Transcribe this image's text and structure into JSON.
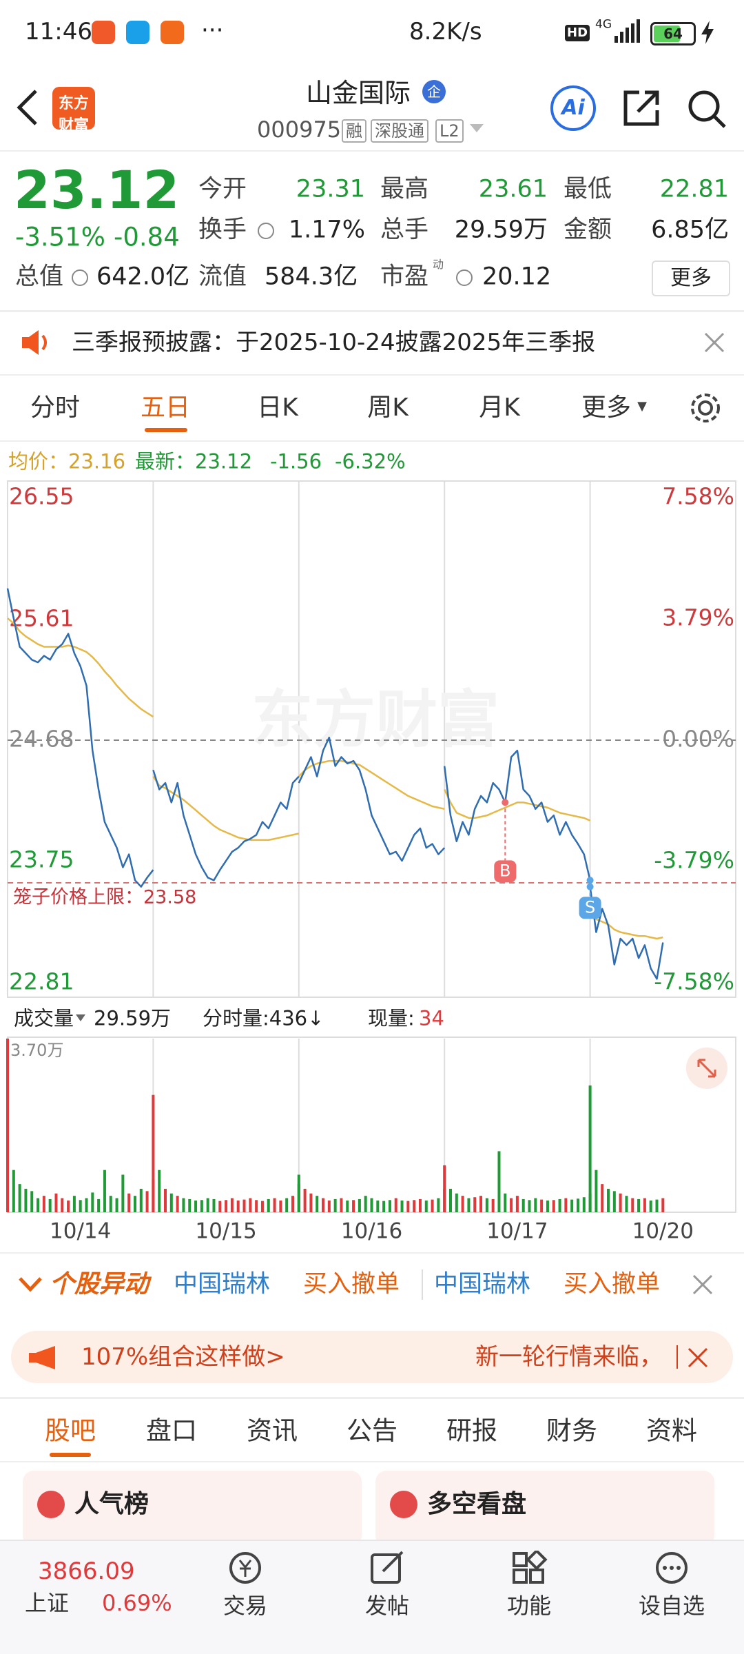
{
  "status_bar": {
    "time": "11:46",
    "speed": "8.2K/s",
    "hd": "HD",
    "network": "4G",
    "battery": "64"
  },
  "header": {
    "logo_top": "东方",
    "logo_bottom": "财富",
    "title": "山金国际",
    "badge": "企",
    "code": "000975",
    "tags": [
      "融",
      "深股通",
      "L2"
    ],
    "ai": "Ai"
  },
  "quote": {
    "price": "23.12",
    "change_pct": "-3.51%",
    "change": "-0.84",
    "fields": [
      {
        "label": "今开",
        "value": "23.31",
        "color": "green"
      },
      {
        "label": "最高",
        "value": "23.61",
        "color": "green"
      },
      {
        "label": "最低",
        "value": "22.81",
        "color": "green"
      },
      {
        "label": "换手",
        "value": "1.17%",
        "color": "dark"
      },
      {
        "label": "总手",
        "value": "29.59万",
        "color": "dark"
      },
      {
        "label": "金额",
        "value": "6.85亿",
        "color": "dark"
      },
      {
        "label": "总值",
        "value": "642.0亿",
        "color": "dark"
      },
      {
        "label": "流值",
        "value": "584.3亿",
        "color": "dark"
      },
      {
        "label": "市盈",
        "value": "20.12",
        "color": "dark"
      }
    ],
    "pe_note": "动",
    "more": "更多"
  },
  "notice": "三季报预披露：于2025-10-24披露2025年三季报",
  "tabs": [
    "分时",
    "五日",
    "日K",
    "周K",
    "月K",
    "更多"
  ],
  "info_line": {
    "avg_label": "均价：23.16",
    "last_label": "最新：23.12",
    "change": "-1.56",
    "change_pct": "-6.32%"
  },
  "chart_data": {
    "type": "line",
    "watermark": "东方财富",
    "categories": [
      "10/14",
      "10/15",
      "10/16",
      "10/17",
      "10/20"
    ],
    "price": [
      [
        25.85,
        25.62,
        25.4,
        25.35,
        25.3,
        25.28,
        25.33,
        25.3,
        25.38,
        25.42,
        25.5,
        25.35,
        25.25,
        25.1,
        24.6,
        24.3,
        24.05,
        23.95,
        23.85,
        23.7,
        23.8,
        23.6,
        23.55,
        23.62,
        23.68
      ],
      [
        24.45,
        24.3,
        24.35,
        24.2,
        24.35,
        24.1,
        23.95,
        23.8,
        23.7,
        23.62,
        23.6,
        23.68,
        23.75,
        23.82,
        23.85,
        23.9,
        23.92,
        23.95,
        24.05,
        24.0,
        24.1,
        24.2,
        24.15,
        24.35,
        24.4
      ],
      [
        24.35,
        24.45,
        24.55,
        24.4,
        24.6,
        24.7,
        24.48,
        24.55,
        24.5,
        24.52,
        24.45,
        24.3,
        24.1,
        24.0,
        23.9,
        23.8,
        23.82,
        23.75,
        23.85,
        23.95,
        24.0,
        23.85,
        23.88,
        23.8,
        23.85
      ],
      [
        24.48,
        24.1,
        23.9,
        24.05,
        23.95,
        24.15,
        24.25,
        24.2,
        24.35,
        24.3,
        24.2,
        24.55,
        24.6,
        24.3,
        24.25,
        24.15,
        24.2,
        24.05,
        24.1,
        23.95,
        24.05,
        23.95,
        23.88,
        23.8,
        23.6
      ],
      [
        23.55,
        23.2,
        23.38,
        23.25,
        22.95,
        23.15,
        23.1,
        23.15,
        23.0,
        23.1,
        22.92,
        22.84,
        23.12
      ]
    ],
    "avg": [
      [
        25.62,
        25.58,
        25.52,
        25.48,
        25.45,
        25.42,
        25.4,
        25.4,
        25.4,
        25.4,
        25.41,
        25.4,
        25.38,
        25.36,
        25.32,
        25.27,
        25.21,
        25.16,
        25.1,
        25.05,
        25.0,
        24.96,
        24.92,
        24.89,
        24.86
      ],
      [
        24.4,
        24.33,
        24.31,
        24.28,
        24.25,
        24.22,
        24.18,
        24.14,
        24.1,
        24.06,
        24.02,
        23.99,
        23.97,
        23.95,
        23.93,
        23.92,
        23.91,
        23.91,
        23.91,
        23.91,
        23.92,
        23.93,
        23.94,
        23.95,
        23.96
      ],
      [
        24.4,
        24.45,
        24.48,
        24.5,
        24.51,
        24.52,
        24.52,
        24.52,
        24.51,
        24.5,
        24.49,
        24.46,
        24.43,
        24.4,
        24.37,
        24.34,
        24.31,
        24.28,
        24.25,
        24.23,
        24.21,
        24.19,
        24.17,
        24.16,
        24.15
      ],
      [
        24.3,
        24.2,
        24.12,
        24.1,
        24.08,
        24.08,
        24.09,
        24.1,
        24.12,
        24.14,
        24.16,
        24.18,
        24.2,
        24.2,
        24.19,
        24.18,
        24.17,
        24.16,
        24.14,
        24.12,
        24.11,
        24.1,
        24.09,
        24.08,
        24.06
      ],
      [
        23.4,
        23.3,
        23.28,
        23.26,
        23.22,
        23.2,
        23.19,
        23.18,
        23.17,
        23.17,
        23.16,
        23.15,
        23.16
      ]
    ],
    "volume": [
      [
        37000,
        9000,
        6000,
        5000,
        4500,
        3000,
        3500,
        2800,
        4000,
        3000,
        2500,
        3500,
        2600,
        3000,
        4200,
        2800,
        9000,
        3500,
        3000,
        8000,
        4000,
        3500,
        5000,
        4500,
        7000
      ],
      [
        25000,
        9000,
        5000,
        4000,
        3500,
        3000,
        2800,
        2500,
        2600,
        3000,
        2800,
        2400,
        2600,
        3000,
        2500,
        2700,
        3000,
        2600,
        2400,
        2800,
        3000,
        2500,
        3000,
        3500,
        6000
      ],
      [
        8000,
        5000,
        4000,
        3500,
        3000,
        2500,
        2800,
        3000,
        2500,
        2600,
        2800,
        3500,
        3000,
        2500,
        2400,
        2600,
        3000,
        2500,
        2400,
        2600,
        2800,
        2500,
        2700,
        3000,
        5000
      ],
      [
        10000,
        5000,
        4000,
        3500,
        3000,
        3200,
        3500,
        3000,
        2800,
        13000,
        4000,
        3000,
        3500,
        2800,
        2600,
        3000,
        2700,
        2500,
        2600,
        2800,
        3000,
        2700,
        2900,
        3200,
        4000
      ],
      [
        27000,
        9000,
        6000,
        5000,
        4500,
        4000,
        3500,
        3000,
        2800,
        3000,
        2500,
        2700,
        3000
      ]
    ],
    "ylim": [
      22.81,
      26.55
    ],
    "yticks": [
      26.55,
      25.61,
      24.68,
      23.75,
      22.81
    ],
    "y2lim": [
      -7.58,
      7.58
    ],
    "y2ticks": [
      {
        "value": 7.58,
        "label": "7.58%"
      },
      {
        "value": 3.79,
        "label": "3.79%"
      },
      {
        "value": 0,
        "label": "0.00%"
      },
      {
        "value": -3.79,
        "label": "-3.79%"
      },
      {
        "value": -7.58,
        "label": "-7.58%"
      }
    ],
    "cage": {
      "label": "笼子价格上限：23.58",
      "value": 23.58
    },
    "markers": [
      "B",
      "S"
    ],
    "volume_max": {
      "value": 37000,
      "label": "3.70万"
    },
    "price_color": "#2f6cb0",
    "avg_color": "#e6b845",
    "up_color": "#e0393b",
    "down_color": "#1f9a36"
  },
  "volume_row": {
    "label": "成交量",
    "total": "29.59万",
    "tick_volume": "分时量:436↓",
    "now_label": "现量:",
    "now_value": "34"
  },
  "alerts": {
    "title": "个股异动",
    "items": [
      "中国瑞林",
      "买入撤单",
      "中国瑞林",
      "买入撤单"
    ]
  },
  "ad": {
    "left": "107%组合这样做>",
    "right": "新一轮行情来临，"
  },
  "tabs2": [
    "股吧",
    "盘口",
    "资讯",
    "公告",
    "研报",
    "财务",
    "资料"
  ],
  "cards": [
    "人气榜",
    "多空看盘"
  ],
  "bottom_nav": {
    "index_value": "3866.09",
    "index_name": "上证",
    "index_change": "0.69%",
    "items": [
      "交易",
      "发帖",
      "功能",
      "设自选"
    ]
  }
}
